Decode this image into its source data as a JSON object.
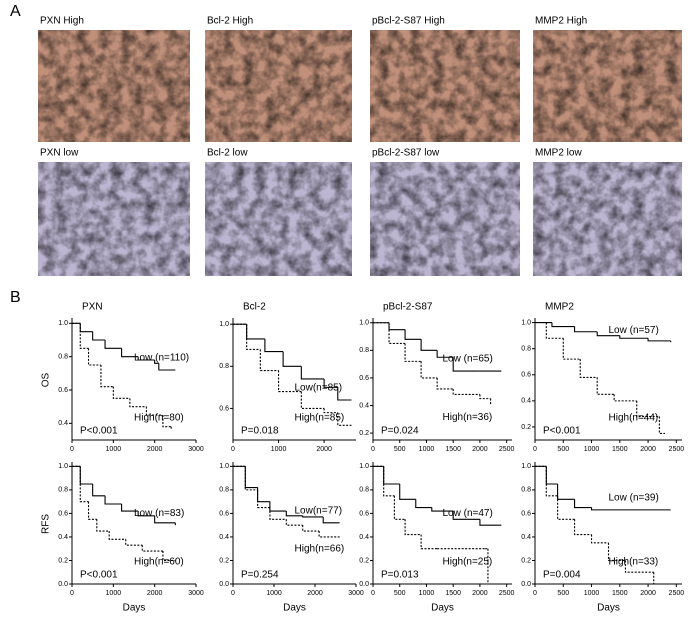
{
  "panel_labels": [
    "A",
    "B"
  ],
  "images": [
    {
      "label": "PXN High",
      "level": "high"
    },
    {
      "label": "Bcl-2 High",
      "level": "high"
    },
    {
      "label": "pBcl-2-S87 High",
      "level": "high"
    },
    {
      "label": "MMP2 High",
      "level": "high"
    },
    {
      "label": "PXN low",
      "level": "low"
    },
    {
      "label": "Bcl-2 low",
      "level": "low"
    },
    {
      "label": "pBcl-2-S87 low",
      "level": "low"
    },
    {
      "label": "MMP2 low",
      "level": "low"
    }
  ],
  "row_labels": [
    "OS",
    "RFS"
  ],
  "chart_data": [
    {
      "type": "step",
      "title": "PXN",
      "annotation": "P<0.001",
      "xlim": [
        0,
        3000
      ],
      "xticks": [
        0,
        1000,
        2000,
        3000
      ],
      "ylim": [
        0.3,
        1.02
      ],
      "yticks": [
        0.4,
        0.6,
        0.8,
        {
          "value": 1,
          "label": "1.0"
        }
      ],
      "series": [
        {
          "name": "Low (n=110)",
          "color": "#000000",
          "dash": false,
          "x": [
            0,
            200,
            500,
            800,
            1200,
            1600,
            2000,
            2100,
            2500
          ],
          "values": [
            1,
            0.95,
            0.9,
            0.85,
            0.8,
            0.78,
            0.76,
            0.72,
            0.72
          ]
        },
        {
          "name": "High(n=80)",
          "color": "#000000",
          "dash": true,
          "x": [
            0,
            200,
            400,
            700,
            1000,
            1400,
            1800,
            2200,
            2400
          ],
          "values": [
            1,
            0.85,
            0.75,
            0.62,
            0.55,
            0.5,
            0.45,
            0.38,
            0.36
          ]
        }
      ]
    },
    {
      "type": "step",
      "title": "Bcl-2",
      "annotation": "P=0.018",
      "xlim": [
        0,
        2700
      ],
      "xticks": [
        0,
        1000,
        2000
      ],
      "ylim": [
        0.45,
        1.02
      ],
      "yticks": [
        0.6,
        0.8,
        {
          "value": 1,
          "label": "1.0"
        }
      ],
      "series": [
        {
          "name": "Low(n=85)",
          "color": "#000000",
          "dash": false,
          "x": [
            0,
            300,
            700,
            1100,
            1500,
            2000,
            2300,
            2600
          ],
          "values": [
            1,
            0.93,
            0.87,
            0.8,
            0.74,
            0.7,
            0.64,
            0.64
          ]
        },
        {
          "name": "High(n=85)",
          "color": "#000000",
          "dash": true,
          "x": [
            0,
            300,
            600,
            1000,
            1500,
            2000,
            2300,
            2600
          ],
          "values": [
            1,
            0.88,
            0.78,
            0.68,
            0.6,
            0.58,
            0.52,
            0.52
          ]
        }
      ]
    },
    {
      "type": "step",
      "title": "pBcl-2-S87",
      "annotation": "P=0.024",
      "xlim": [
        0,
        2600
      ],
      "xticks": [
        0,
        500,
        1000,
        1500,
        2000,
        2500
      ],
      "ylim": [
        0.15,
        1.02
      ],
      "yticks": [
        0.2,
        0.4,
        0.6,
        0.8,
        {
          "value": 1,
          "label": "1.0"
        }
      ],
      "series": [
        {
          "name": "Low (n=65)",
          "color": "#000000",
          "dash": false,
          "x": [
            0,
            300,
            600,
            900,
            1200,
            1500,
            2000,
            2400
          ],
          "values": [
            1,
            0.95,
            0.88,
            0.8,
            0.75,
            0.65,
            0.65,
            0.65
          ]
        },
        {
          "name": "High(n=36)",
          "color": "#000000",
          "dash": true,
          "x": [
            0,
            300,
            600,
            900,
            1200,
            1500,
            2000,
            2200
          ],
          "values": [
            1,
            0.85,
            0.72,
            0.6,
            0.52,
            0.48,
            0.45,
            0.4
          ]
        }
      ]
    },
    {
      "type": "step",
      "title": "MMP2",
      "annotation": "P<0.001",
      "xlim": [
        0,
        2600
      ],
      "xticks": [
        0,
        500,
        1000,
        1500,
        2000,
        2500
      ],
      "ylim": [
        0.1,
        1.02
      ],
      "yticks": [
        0.2,
        0.4,
        0.6,
        0.8,
        {
          "value": 1,
          "label": "1.0"
        }
      ],
      "series": [
        {
          "name": "Low (n=57)",
          "color": "#000000",
          "dash": false,
          "x": [
            0,
            300,
            700,
            1100,
            1500,
            2000,
            2400
          ],
          "values": [
            1,
            0.97,
            0.93,
            0.9,
            0.88,
            0.86,
            0.85
          ]
        },
        {
          "name": "High(n=44)",
          "color": "#000000",
          "dash": true,
          "x": [
            0,
            200,
            500,
            800,
            1100,
            1400,
            1800,
            2200,
            2300
          ],
          "values": [
            1,
            0.88,
            0.72,
            0.58,
            0.45,
            0.4,
            0.28,
            0.15,
            0.15
          ]
        }
      ]
    },
    {
      "type": "step",
      "xlabel": "Days",
      "annotation": "P<0.001",
      "xlim": [
        0,
        3000
      ],
      "xticks": [
        0,
        1000,
        2000,
        3000
      ],
      "ylim": [
        0,
        1.02
      ],
      "yticks": [
        {
          "value": 0,
          "label": "0.0"
        },
        0.2,
        0.4,
        0.6,
        0.8,
        {
          "value": 1,
          "label": "1.0"
        }
      ],
      "series": [
        {
          "name": "Low (n=83)",
          "color": "#000000",
          "dash": false,
          "x": [
            0,
            200,
            500,
            800,
            1200,
            1600,
            2000,
            2500
          ],
          "values": [
            1,
            0.85,
            0.75,
            0.68,
            0.62,
            0.58,
            0.52,
            0.5
          ]
        },
        {
          "name": "High(n=60)",
          "color": "#000000",
          "dash": true,
          "x": [
            0,
            200,
            400,
            600,
            900,
            1300,
            1700,
            2200,
            2500
          ],
          "values": [
            1,
            0.7,
            0.55,
            0.45,
            0.38,
            0.33,
            0.28,
            0.2,
            0.2
          ]
        }
      ]
    },
    {
      "type": "step",
      "xlabel": "Days",
      "annotation": "P=0.254",
      "xlim": [
        0,
        3000
      ],
      "xticks": [
        0,
        1000,
        2000,
        3000
      ],
      "ylim": [
        0,
        1.02
      ],
      "yticks": [
        {
          "value": 0,
          "label": "0.0"
        },
        0.2,
        0.4,
        0.6,
        0.8,
        {
          "value": 1,
          "label": "1.0"
        }
      ],
      "series": [
        {
          "name": "Low(n=77)",
          "color": "#000000",
          "dash": false,
          "x": [
            0,
            300,
            600,
            900,
            1300,
            1700,
            2200,
            2600
          ],
          "values": [
            1,
            0.82,
            0.7,
            0.62,
            0.58,
            0.57,
            0.52,
            0.52
          ]
        },
        {
          "name": "High(n=66)",
          "color": "#000000",
          "dash": true,
          "x": [
            0,
            300,
            600,
            900,
            1300,
            1700,
            2100,
            2600
          ],
          "values": [
            1,
            0.8,
            0.65,
            0.55,
            0.5,
            0.45,
            0.4,
            0.4
          ]
        }
      ]
    },
    {
      "type": "step",
      "xlabel": "Days",
      "annotation": "P=0.013",
      "xlim": [
        0,
        2600
      ],
      "xticks": [
        0,
        500,
        1000,
        1500,
        2000,
        2500
      ],
      "ylim": [
        0,
        1.02
      ],
      "yticks": [
        {
          "value": 0,
          "label": "0.0"
        },
        0.2,
        0.4,
        0.6,
        0.8,
        {
          "value": 1,
          "label": "1.0"
        }
      ],
      "series": [
        {
          "name": "Low (n=47)",
          "color": "#000000",
          "dash": false,
          "x": [
            0,
            200,
            500,
            800,
            1100,
            1500,
            2000,
            2400
          ],
          "values": [
            1,
            0.85,
            0.72,
            0.65,
            0.62,
            0.55,
            0.5,
            0.5
          ]
        },
        {
          "name": "High(n=25)",
          "color": "#000000",
          "dash": true,
          "x": [
            0,
            200,
            400,
            600,
            900,
            1200,
            2100,
            2150
          ],
          "values": [
            1,
            0.75,
            0.55,
            0.42,
            0.3,
            0.3,
            0.3,
            0
          ]
        }
      ]
    },
    {
      "type": "step",
      "xlabel": "Days",
      "annotation": "P=0.004",
      "xlim": [
        0,
        2600
      ],
      "xticks": [
        0,
        500,
        1000,
        1500,
        2000,
        2500
      ],
      "ylim": [
        0,
        1.02
      ],
      "yticks": [
        {
          "value": 0,
          "label": "0.0"
        },
        0.2,
        0.4,
        0.6,
        0.8,
        {
          "value": 1,
          "label": "1.0"
        }
      ],
      "series": [
        {
          "name": "Low (n=39)",
          "color": "#000000",
          "dash": false,
          "x": [
            0,
            200,
            400,
            700,
            1000,
            2400
          ],
          "values": [
            1,
            0.85,
            0.72,
            0.65,
            0.63,
            0.63
          ]
        },
        {
          "name": "High(n=33)",
          "color": "#000000",
          "dash": true,
          "x": [
            0,
            200,
            400,
            700,
            1000,
            1300,
            1600,
            2100
          ],
          "values": [
            1,
            0.75,
            0.55,
            0.42,
            0.35,
            0.2,
            0.1,
            0
          ]
        }
      ]
    }
  ]
}
